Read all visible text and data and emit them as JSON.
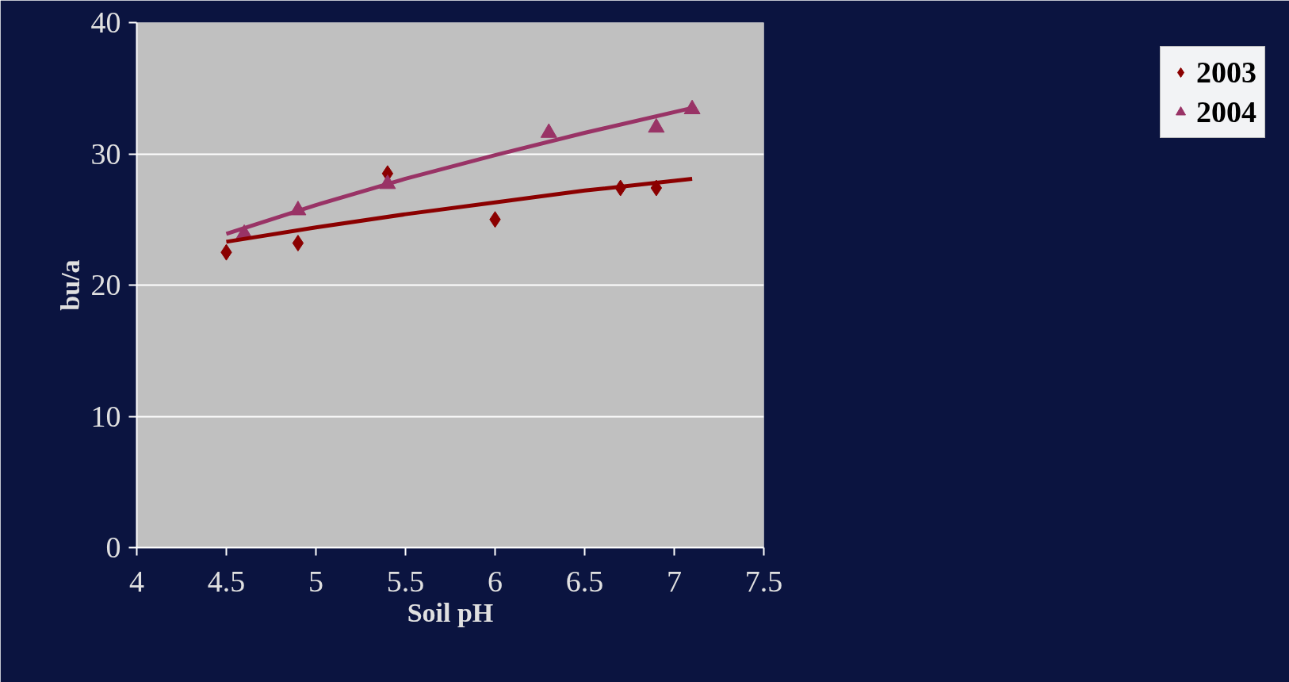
{
  "chart_data": {
    "type": "scatter",
    "xlabel": "Soil pH",
    "ylabel": "bu/a",
    "xlim": [
      4,
      7.5
    ],
    "xticks": [
      4,
      4.5,
      5,
      5.5,
      6,
      6.5,
      7,
      7.5
    ],
    "ylim": [
      0,
      40
    ],
    "yticks": [
      0,
      10,
      20,
      30,
      40
    ],
    "grid": "y",
    "legend": "right",
    "series": [
      {
        "name": "2003",
        "color": "#8b0000",
        "marker": "diamond",
        "x": [
          4.5,
          4.9,
          5.4,
          6.0,
          6.7,
          6.9
        ],
        "values": [
          22.5,
          23.2,
          28.5,
          25.0,
          27.4,
          27.4
        ]
      },
      {
        "name": "2004",
        "color": "#993366",
        "marker": "triangle",
        "x": [
          4.6,
          4.9,
          5.4,
          6.3,
          6.9,
          7.1
        ],
        "values": [
          23.9,
          25.7,
          27.7,
          31.6,
          32.0,
          33.4
        ]
      },
      {
        "type": "line",
        "color": "#8b0000",
        "x": [
          4.5,
          5.0,
          5.5,
          6.0,
          6.5,
          7.1
        ],
        "values": [
          23.3,
          24.4,
          25.4,
          26.3,
          27.2,
          28.1
        ]
      },
      {
        "type": "line",
        "color": "#993366",
        "x": [
          4.5,
          5.0,
          5.5,
          6.0,
          6.5,
          7.1
        ],
        "values": [
          23.9,
          26.1,
          28.1,
          29.9,
          31.6,
          33.5
        ]
      }
    ]
  }
}
